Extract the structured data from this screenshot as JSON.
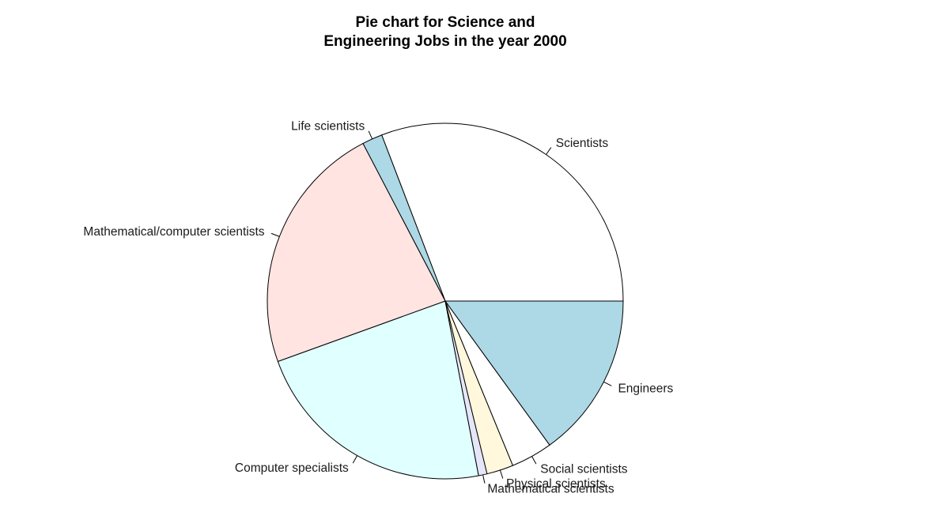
{
  "chart_data": {
    "type": "pie",
    "title": "Pie chart for Science and\nEngineering Jobs in the year 2000",
    "title_lines": [
      "Pie chart for Science and",
      "Engineering Jobs in the year 2000"
    ],
    "direction": "counterclockwise",
    "start_angle_deg": 0,
    "slices": [
      {
        "label": "Scientists",
        "value": 31.8,
        "color": "#ffffff"
      },
      {
        "label": "Life scientists",
        "value": 1.9,
        "color": "#add8e6"
      },
      {
        "label": "Mathematical/computer scientists",
        "value": 23.6,
        "color": "#ffe4e1"
      },
      {
        "label": "Computer specialists",
        "value": 23.2,
        "color": "#e0ffff"
      },
      {
        "label": "Mathematical scientists",
        "value": 0.8,
        "color": "#e6e6fa"
      },
      {
        "label": "Physical scientists",
        "value": 2.5,
        "color": "#fff8dc"
      },
      {
        "label": "Social scientists",
        "value": 3.9,
        "color": "#ffffff"
      },
      {
        "label": "Engineers",
        "value": 15.5,
        "color": "#add8e6"
      }
    ]
  }
}
